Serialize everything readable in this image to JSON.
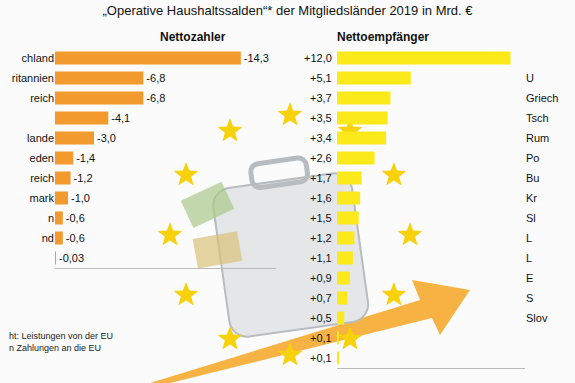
{
  "title": "„Operative Haushaltssalden“* der Mitgliedsländer 2019 in Mrd. €",
  "footnote": [
    "ht: Leistungen von der EU",
    "n Zahlungen an die EU"
  ],
  "chart_data": [
    {
      "type": "bar",
      "orientation": "horizontal",
      "title": "Nettozahler",
      "categories": [
        "chland",
        "ritannien",
        "reich",
        null,
        "lande",
        "eden",
        "reich",
        "mark",
        "n",
        "nd",
        null
      ],
      "values": [
        -14.3,
        -6.8,
        -6.8,
        -4.1,
        -3.0,
        -1.4,
        -1.2,
        -1.0,
        -0.6,
        -0.6,
        -0.03
      ],
      "value_labels": [
        "-14,3",
        "-6,8",
        "-6,8",
        "-4,1",
        "-3,0",
        "-1,4",
        "-1,2",
        "-1,0",
        "-0,6",
        "-0,6",
        "-0,03"
      ],
      "color": "#f39a2e",
      "xlim": [
        0,
        -17
      ],
      "xticks": [],
      "tick_labels": "y",
      "data_labels": true,
      "grid": false
    },
    {
      "type": "bar",
      "orientation": "horizontal",
      "title": "Nettoempfänger",
      "categories": [
        null,
        "U",
        "Griech",
        "Tsch",
        "Rum",
        "Po",
        "Bu",
        "Kr",
        "Sl",
        "L",
        "L",
        "E",
        "S",
        "Slov",
        null,
        null
      ],
      "values": [
        12.0,
        5.1,
        3.7,
        3.5,
        3.4,
        2.6,
        1.7,
        1.6,
        1.5,
        1.2,
        1.1,
        0.9,
        0.7,
        0.5,
        0.1,
        0.1
      ],
      "value_labels": [
        "+12,0",
        "+5,1",
        "+3,7",
        "+3,5",
        "+3,4",
        "+2,6",
        "+1,7",
        "+1,6",
        "+1,5",
        "+1,2",
        "+1,1",
        "+0,9",
        "+0,7",
        "+0,5",
        "+0,1",
        "+0,1"
      ],
      "color": "#fbe91a",
      "xlim": [
        0,
        13
      ],
      "xticks": [],
      "tick_labels": "y",
      "data_labels": true,
      "grid": false
    }
  ]
}
